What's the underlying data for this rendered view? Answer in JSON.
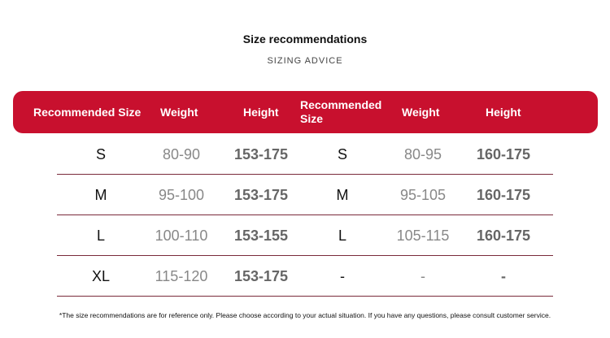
{
  "title": "Size recommendations",
  "subtitle": "SIZING ADVICE",
  "header": [
    "Recommended Size",
    "Weight",
    "Height",
    "Recommended Size",
    "Weight",
    "Height"
  ],
  "rows": [
    [
      "S",
      "80-90",
      "153-175",
      "S",
      "80-95",
      "160-175"
    ],
    [
      "M",
      "95-100",
      "153-175",
      "M",
      "95-105",
      "160-175"
    ],
    [
      "L",
      "100-110",
      "153-155",
      "L",
      "105-115",
      "160-175"
    ],
    [
      "XL",
      "115-120",
      "153-175",
      "-",
      "-",
      "-"
    ]
  ],
  "note": "*The size recommendations are for reference only. Please choose according to your actual situation. If you have any questions, please consult customer service.",
  "colors": {
    "header_bg": "#c8102e",
    "divider": "#7a2a3a"
  }
}
